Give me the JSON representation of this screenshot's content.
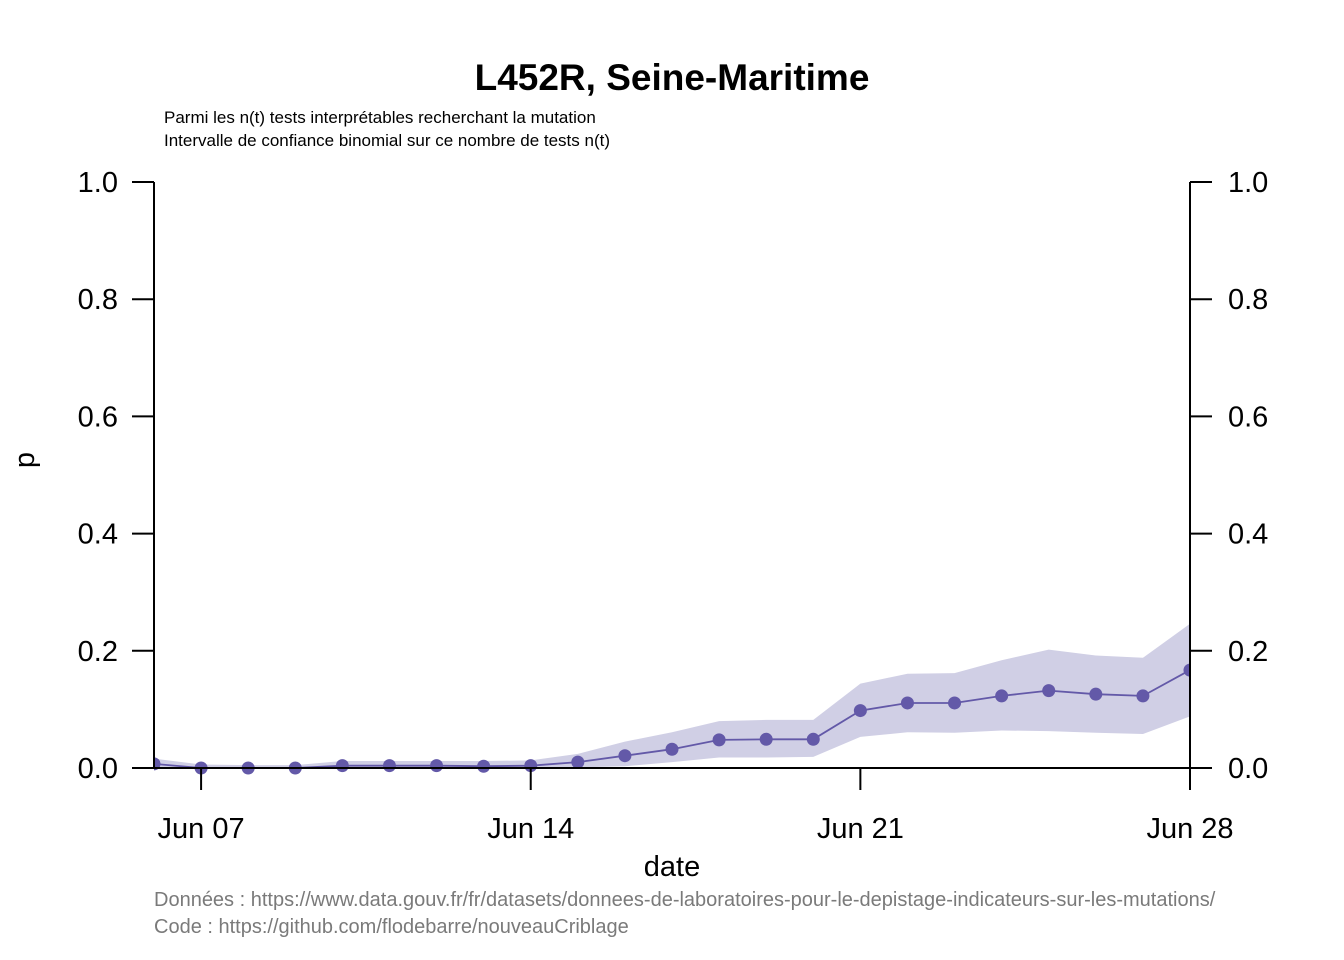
{
  "colors": {
    "series": "#6359a8",
    "band": "#d0cfe5",
    "axis": "#000000",
    "source_text": "#7a7a7a"
  },
  "chart_data": {
    "type": "line",
    "title": "L452R, Seine-Maritime",
    "subtitle_lines": [
      "Parmi les n(t) tests interprétables recherchant la mutation",
      "Intervalle de confiance binomial sur ce nombre de tests n(t)"
    ],
    "xlabel": "date",
    "ylabel": "p",
    "ylim": [
      0,
      1
    ],
    "xlim": [
      "2021-06-06",
      "2021-06-28"
    ],
    "y_ticks": [
      "0.0",
      "0.2",
      "0.4",
      "0.6",
      "0.8",
      "1.0"
    ],
    "x_ticks": [
      {
        "date": "2021-06-07",
        "label": "Jun 07"
      },
      {
        "date": "2021-06-14",
        "label": "Jun 14"
      },
      {
        "date": "2021-06-21",
        "label": "Jun 21"
      },
      {
        "date": "2021-06-28",
        "label": "Jun 28"
      }
    ],
    "grid": false,
    "right_axis": true,
    "series": [
      {
        "x": [
          "2021-06-06",
          "2021-06-07",
          "2021-06-08",
          "2021-06-09",
          "2021-06-10",
          "2021-06-11",
          "2021-06-12",
          "2021-06-13",
          "2021-06-14",
          "2021-06-15",
          "2021-06-16",
          "2021-06-17",
          "2021-06-18",
          "2021-06-19",
          "2021-06-20",
          "2021-06-21",
          "2021-06-22",
          "2021-06-23",
          "2021-06-24",
          "2021-06-25",
          "2021-06-26",
          "2021-06-27",
          "2021-06-28"
        ],
        "p": [
          0.007,
          0.0,
          0.0,
          0.0,
          0.004,
          0.004,
          0.004,
          0.003,
          0.004,
          0.01,
          0.021,
          0.032,
          0.048,
          0.049,
          0.049,
          0.098,
          0.111,
          0.111,
          0.123,
          0.132,
          0.126,
          0.123,
          0.167
        ],
        "lower": [
          0.0,
          0.0,
          0.0,
          0.0,
          0.0,
          0.0,
          0.0,
          0.0,
          0.0,
          0.001,
          0.003,
          0.01,
          0.018,
          0.018,
          0.019,
          0.053,
          0.061,
          0.06,
          0.064,
          0.063,
          0.06,
          0.058,
          0.088
        ],
        "upper": [
          0.016,
          0.006,
          0.005,
          0.005,
          0.012,
          0.012,
          0.012,
          0.012,
          0.013,
          0.024,
          0.045,
          0.061,
          0.08,
          0.082,
          0.082,
          0.144,
          0.161,
          0.162,
          0.184,
          0.202,
          0.192,
          0.188,
          0.246
        ]
      }
    ]
  },
  "source": {
    "data_line": "Données : https://www.data.gouv.fr/fr/datasets/donnees-de-laboratoires-pour-le-depistage-indicateurs-sur-les-mutations/",
    "code_line": "Code : https://github.com/flodebarre/nouveauCriblage"
  }
}
